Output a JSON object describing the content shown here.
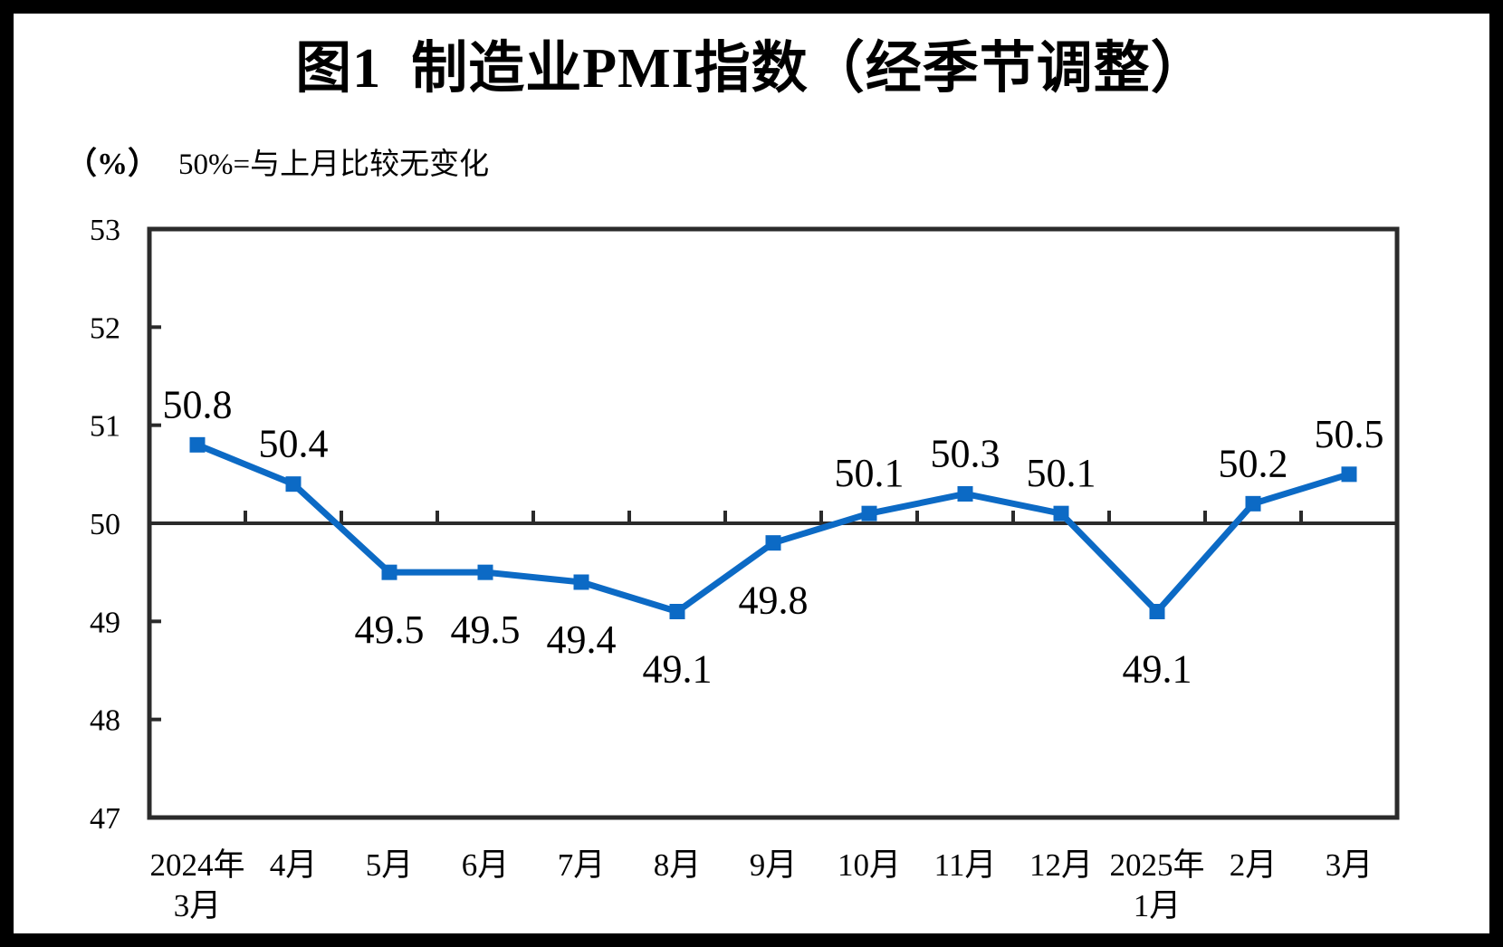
{
  "figure": {
    "title": "图1  制造业PMI指数（经季节调整）",
    "unit_label": "（%）",
    "axis_note": "50%=与上月比较无变化"
  },
  "chart_data": {
    "type": "line",
    "title": "图1  制造业PMI指数（经季节调整）",
    "ylabel": "（%）",
    "annotation": "50%=与上月比较无变化",
    "ylim": [
      47,
      53
    ],
    "yticks": [
      53,
      52,
      51,
      50,
      49,
      48,
      47
    ],
    "reference_line_y": 50,
    "grid": false,
    "legend": false,
    "line_color": "#0C6AC5",
    "axis_color": "#2B2B2B",
    "categories": [
      [
        "2024年",
        "3月"
      ],
      [
        "4月"
      ],
      [
        "5月"
      ],
      [
        "6月"
      ],
      [
        "7月"
      ],
      [
        "8月"
      ],
      [
        "9月"
      ],
      [
        "10月"
      ],
      [
        "11月"
      ],
      [
        "12月"
      ],
      [
        "2025年",
        "1月"
      ],
      [
        "2月"
      ],
      [
        "3月"
      ]
    ],
    "values": [
      50.8,
      50.4,
      49.5,
      49.5,
      49.4,
      49.1,
      49.8,
      50.1,
      50.3,
      50.1,
      49.1,
      50.2,
      50.5
    ],
    "point_labels": [
      "50.8",
      "50.4",
      "49.5",
      "49.5",
      "49.4",
      "49.1",
      "49.8",
      "50.1",
      "50.3",
      "50.1",
      "49.1",
      "50.2",
      "50.5"
    ],
    "label_positions": [
      "above",
      "above",
      "below",
      "below",
      "below",
      "below",
      "below",
      "above",
      "above",
      "above",
      "below",
      "above",
      "above"
    ]
  }
}
